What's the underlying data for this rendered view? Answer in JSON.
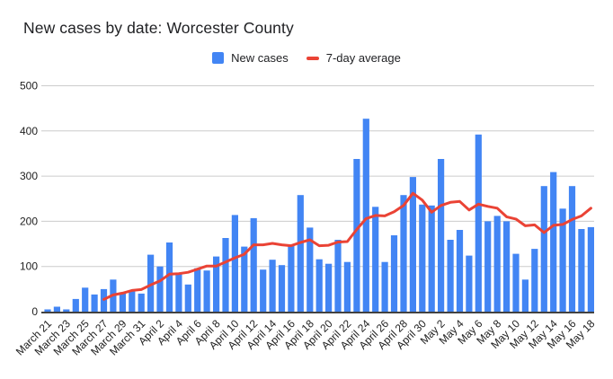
{
  "title": "New cases by date: Worcester County",
  "legend": {
    "items": [
      {
        "label": "New cases",
        "marker": "square",
        "color": "#4285f4"
      },
      {
        "label": "7-day average",
        "marker": "dash",
        "color": "#ea4335"
      }
    ]
  },
  "chart_data": {
    "type": "bar",
    "title": "New cases by date: Worcester County",
    "categories": [
      "March 21",
      "March 22",
      "March 23",
      "March 24",
      "March 25",
      "March 26",
      "March 27",
      "March 28",
      "March 29",
      "March 30",
      "March 31",
      "April 1",
      "April 2",
      "April 3",
      "April 4",
      "April 5",
      "April 6",
      "April 7",
      "April 8",
      "April 9",
      "April 10",
      "April 11",
      "April 12",
      "April 13",
      "April 14",
      "April 15",
      "April 16",
      "April 17",
      "April 18",
      "April 19",
      "April 20",
      "April 21",
      "April 22",
      "April 23",
      "April 24",
      "April 25",
      "April 26",
      "April 27",
      "April 28",
      "April 29",
      "April 30",
      "May 1",
      "May 2",
      "May 3",
      "May 4",
      "May 5",
      "May 6",
      "May 7",
      "May 8",
      "May 9",
      "May 10",
      "May 11",
      "May 12",
      "May 13",
      "May 14",
      "May 15",
      "May 16",
      "May 17",
      "May 18"
    ],
    "series": [
      {
        "name": "New cases",
        "type": "bar",
        "color": "#4285f4",
        "values": [
          5,
          11,
          5,
          28,
          53,
          38,
          50,
          71,
          43,
          45,
          40,
          126,
          100,
          153,
          84,
          60,
          96,
          91,
          122,
          163,
          214,
          144,
          207,
          93,
          115,
          103,
          148,
          258,
          186,
          116,
          106,
          159,
          110,
          338,
          427,
          232,
          110,
          169,
          258,
          298,
          237,
          235,
          338,
          159,
          181,
          124,
          392,
          200,
          212,
          200,
          128,
          71,
          139,
          278,
          309,
          228,
          278,
          183,
          187
        ]
      },
      {
        "name": "7-day average",
        "type": "line",
        "color": "#ea4335",
        "values": [
          null,
          null,
          null,
          null,
          null,
          null,
          27,
          37,
          41,
          47,
          49,
          59,
          68,
          83,
          84,
          87,
          94,
          101,
          101,
          110,
          119,
          127,
          148,
          148,
          151,
          148,
          146,
          153,
          159,
          146,
          147,
          154,
          155,
          182,
          206,
          213,
          212,
          221,
          235,
          262,
          247,
          220,
          235,
          242,
          244,
          225,
          238,
          233,
          229,
          210,
          205,
          190,
          192,
          175,
          191,
          193,
          204,
          212,
          229
        ]
      }
    ],
    "xlabel": "",
    "ylabel": "",
    "ylim": [
      0,
      500
    ],
    "yticks": [
      0,
      100,
      200,
      300,
      400,
      500
    ],
    "x_tick_every": 2,
    "x_tick_rotation": -45,
    "grid": true,
    "legend_position": "top",
    "style": {
      "grid_color": "#cccccc",
      "baseline_color": "#424242",
      "tick_text_color": "#212121",
      "title_color": "#202124",
      "background_color": "#ffffff"
    }
  }
}
